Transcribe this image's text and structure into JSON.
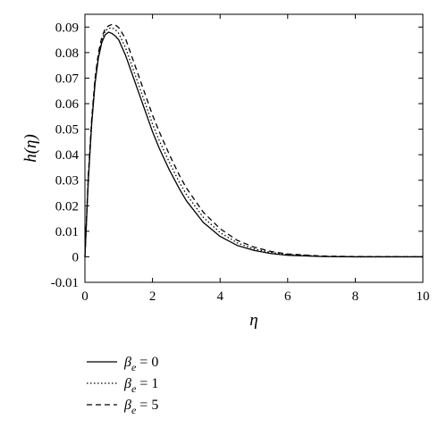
{
  "chart_data": {
    "type": "line",
    "title": "",
    "xlabel": "η",
    "ylabel": "h(η)",
    "xlim": [
      0,
      10
    ],
    "ylim": [
      -0.01,
      0.095
    ],
    "xticks": [
      0,
      2,
      4,
      6,
      8,
      10
    ],
    "yticks": [
      -0.01,
      0,
      0.01,
      0.02,
      0.03,
      0.04,
      0.05,
      0.06,
      0.07,
      0.08,
      0.09
    ],
    "xtick_labels": [
      "0",
      "2",
      "4",
      "6",
      "8",
      "10"
    ],
    "ytick_labels": [
      "-0.01",
      "0",
      "0.01",
      "0.02",
      "0.03",
      "0.04",
      "0.05",
      "0.06",
      "0.07",
      "0.08",
      "0.09"
    ],
    "grid": false,
    "legend_position": "below-left",
    "series": [
      {
        "name": "βe = 0",
        "legend_symbol": "β",
        "legend_subscript": "e",
        "legend_value": " = 0",
        "style": "solid",
        "x": [
          0,
          0.05,
          0.1,
          0.2,
          0.3,
          0.4,
          0.5,
          0.6,
          0.7,
          0.8,
          0.9,
          1.0,
          1.2,
          1.4,
          1.6,
          1.8,
          2.0,
          2.2,
          2.5,
          2.8,
          3.0,
          3.5,
          4.0,
          4.5,
          5.0,
          5.5,
          6.0,
          7.0,
          8.0,
          10.0
        ],
        "y": [
          0,
          0.015,
          0.03,
          0.052,
          0.068,
          0.078,
          0.084,
          0.087,
          0.088,
          0.0875,
          0.0865,
          0.085,
          0.079,
          0.0715,
          0.064,
          0.0565,
          0.049,
          0.0425,
          0.034,
          0.0265,
          0.022,
          0.0135,
          0.008,
          0.0045,
          0.0025,
          0.0013,
          0.0006,
          0.0001,
          0,
          0
        ]
      },
      {
        "name": "βe = 1",
        "legend_symbol": "β",
        "legend_subscript": "e",
        "legend_value": " = 1",
        "style": "dotted",
        "x": [
          0,
          0.05,
          0.1,
          0.2,
          0.3,
          0.4,
          0.5,
          0.6,
          0.7,
          0.8,
          0.9,
          1.0,
          1.2,
          1.4,
          1.6,
          1.8,
          2.0,
          2.2,
          2.5,
          2.8,
          3.0,
          3.5,
          4.0,
          4.5,
          5.0,
          5.5,
          6.0,
          7.0,
          8.0,
          10.0
        ],
        "y": [
          0,
          0.0155,
          0.031,
          0.053,
          0.069,
          0.079,
          0.085,
          0.0885,
          0.0895,
          0.0897,
          0.089,
          0.0875,
          0.082,
          0.0745,
          0.067,
          0.0595,
          0.052,
          0.0455,
          0.037,
          0.029,
          0.0245,
          0.0155,
          0.0095,
          0.0055,
          0.0031,
          0.0017,
          0.0009,
          0.0002,
          0,
          0
        ]
      },
      {
        "name": "βe = 5",
        "legend_symbol": "β",
        "legend_subscript": "e",
        "legend_value": " = 5",
        "style": "dashed",
        "x": [
          0,
          0.05,
          0.1,
          0.2,
          0.3,
          0.4,
          0.5,
          0.6,
          0.7,
          0.8,
          0.9,
          1.0,
          1.2,
          1.4,
          1.6,
          1.8,
          2.0,
          2.2,
          2.5,
          2.8,
          3.0,
          3.5,
          4.0,
          4.5,
          5.0,
          5.5,
          6.0,
          7.0,
          8.0,
          10.0
        ],
        "y": [
          0,
          0.016,
          0.032,
          0.054,
          0.07,
          0.08,
          0.086,
          0.0893,
          0.0905,
          0.091,
          0.0908,
          0.0898,
          0.0855,
          0.078,
          0.0705,
          0.063,
          0.0555,
          0.049,
          0.04,
          0.0318,
          0.027,
          0.0175,
          0.011,
          0.0065,
          0.0038,
          0.0021,
          0.0011,
          0.0003,
          0.0001,
          0
        ]
      }
    ]
  }
}
